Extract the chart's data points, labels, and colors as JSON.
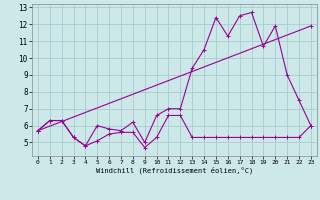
{
  "xlabel": "Windchill (Refroidissement éolien,°C)",
  "bg_color": "#cce8e8",
  "grid_color": "#aacccc",
  "line_color": "#990099",
  "xlim": [
    -0.5,
    23.5
  ],
  "ylim": [
    4.2,
    13.2
  ],
  "xticks": [
    0,
    1,
    2,
    3,
    4,
    5,
    6,
    7,
    8,
    9,
    10,
    11,
    12,
    13,
    14,
    15,
    16,
    17,
    18,
    19,
    20,
    21,
    22,
    23
  ],
  "yticks": [
    5,
    6,
    7,
    8,
    9,
    10,
    11,
    12,
    13
  ],
  "line1_x": [
    0,
    1,
    2,
    3,
    4,
    5,
    6,
    7,
    8,
    9,
    10,
    11,
    12,
    13,
    14,
    15,
    16,
    17,
    18,
    19,
    20,
    21,
    22,
    23
  ],
  "line1_y": [
    5.7,
    6.3,
    6.3,
    5.3,
    4.8,
    5.1,
    5.5,
    5.6,
    5.6,
    4.7,
    5.3,
    6.6,
    6.6,
    5.3,
    5.3,
    5.3,
    5.3,
    5.3,
    5.3,
    5.3,
    5.3,
    5.3,
    5.3,
    6.0
  ],
  "line2_x": [
    0,
    1,
    2,
    3,
    4,
    5,
    6,
    7,
    8,
    9,
    10,
    11,
    12,
    13,
    14,
    15,
    16,
    17,
    18,
    19,
    20,
    21,
    22,
    23
  ],
  "line2_y": [
    5.7,
    6.3,
    6.3,
    5.3,
    4.8,
    6.0,
    5.8,
    5.7,
    6.2,
    5.0,
    6.6,
    7.0,
    7.0,
    9.4,
    10.5,
    12.4,
    11.3,
    12.5,
    12.7,
    10.7,
    11.9,
    9.0,
    7.5,
    6.0
  ],
  "line3_x": [
    0,
    23
  ],
  "line3_y": [
    5.7,
    11.9
  ]
}
